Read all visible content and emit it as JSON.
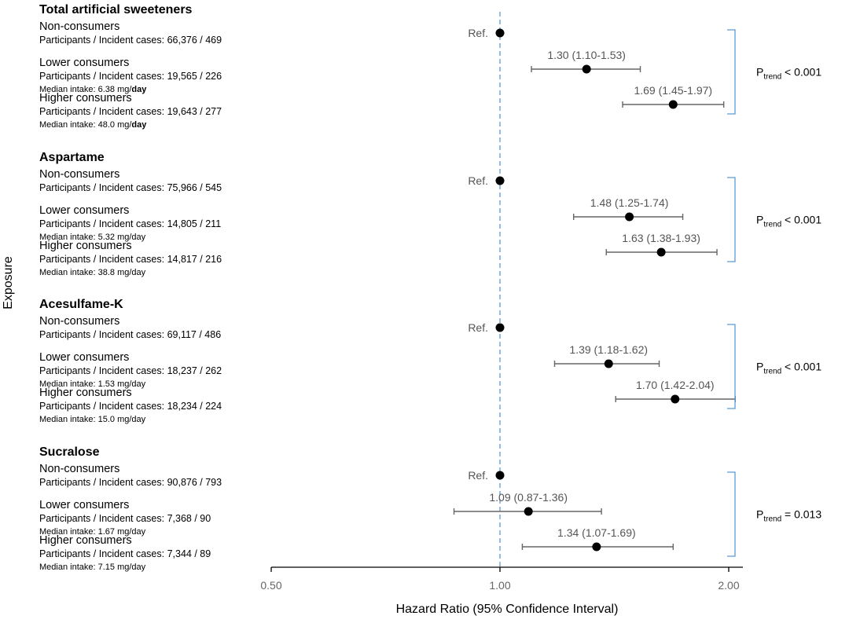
{
  "chart_data": {
    "type": "forest",
    "xlabel": "Hazard Ratio (95% Confidence Interval)",
    "ylabel": "Exposure",
    "x_scale": "log",
    "xlim": [
      0.5,
      2.1
    ],
    "reference_line": 1.0,
    "ticks": [
      {
        "value": 0.5,
        "label": "0.50"
      },
      {
        "value": 1.0,
        "label": "1.00"
      },
      {
        "value": 2.0,
        "label": "2.00"
      }
    ],
    "ref_text": "Ref.",
    "groups": [
      {
        "title": "Total artificial sweeteners",
        "p_trend": {
          "prefix": "P",
          "sub": "trend",
          "suffix": " < 0.001"
        },
        "rows": [
          {
            "label": "Non-consumers",
            "detail": "Participants / Incident cases: 66,376 / 469",
            "median_prefix": "",
            "median_bold": "",
            "ref": true,
            "hr": 1.0
          },
          {
            "label": "Lower consumers",
            "detail": "Participants / Incident cases: 19,565 / 226",
            "median_prefix": "Median intake: 6.38 mg/",
            "median_bold": "day",
            "ref": false,
            "hr": 1.3,
            "lo": 1.1,
            "hi": 1.53,
            "text": "1.30 (1.10-1.53)"
          },
          {
            "label": "Higher consumers",
            "detail": "Participants / Incident cases: 19,643 / 277",
            "median_prefix": "Median intake: 48.0 mg/",
            "median_bold": "day",
            "ref": false,
            "hr": 1.69,
            "lo": 1.45,
            "hi": 1.97,
            "text": "1.69 (1.45-1.97)"
          }
        ]
      },
      {
        "title": "Aspartame",
        "p_trend": {
          "prefix": "P",
          "sub": "trend",
          "suffix": " < 0.001"
        },
        "rows": [
          {
            "label": "Non-consumers",
            "detail": "Participants / Incident cases: 75,966 / 545",
            "median_prefix": "",
            "median_bold": "",
            "ref": true,
            "hr": 1.0
          },
          {
            "label": "Lower consumers",
            "detail": "Participants / Incident cases: 14,805 / 211",
            "median_prefix": "Median intake: 5.32 mg/day",
            "median_bold": "",
            "ref": false,
            "hr": 1.48,
            "lo": 1.25,
            "hi": 1.74,
            "text": "1.48 (1.25-1.74)"
          },
          {
            "label": "Higher consumers",
            "detail": "Participants / Incident cases: 14,817 / 216",
            "median_prefix": "Median intake: 38.8 mg/day",
            "median_bold": "",
            "ref": false,
            "hr": 1.63,
            "lo": 1.38,
            "hi": 1.93,
            "text": "1.63 (1.38-1.93)"
          }
        ]
      },
      {
        "title": "Acesulfame-K",
        "p_trend": {
          "prefix": "P",
          "sub": "trend",
          "suffix": " < 0.001"
        },
        "rows": [
          {
            "label": "Non-consumers",
            "detail": "Participants / Incident cases: 69,117 / 486",
            "median_prefix": "",
            "median_bold": "",
            "ref": true,
            "hr": 1.0
          },
          {
            "label": "Lower consumers",
            "detail": "Participants / Incident cases: 18,237 / 262",
            "median_prefix": "Median intake: 1.53 mg/day",
            "median_bold": "",
            "ref": false,
            "hr": 1.39,
            "lo": 1.18,
            "hi": 1.62,
            "text": "1.39 (1.18-1.62)"
          },
          {
            "label": "Higher consumers",
            "detail": "Participants / Incident cases: 18,234 / 224",
            "median_prefix": "Median intake: 15.0 mg/day",
            "median_bold": "",
            "ref": false,
            "hr": 1.7,
            "lo": 1.42,
            "hi": 2.04,
            "text": "1.70 (1.42-2.04)"
          }
        ]
      },
      {
        "title": "Sucralose",
        "p_trend": {
          "prefix": "P",
          "sub": "trend",
          "suffix": " = 0.013"
        },
        "rows": [
          {
            "label": "Non-consumers",
            "detail": "Participants / Incident cases: 90,876 / 793",
            "median_prefix": "",
            "median_bold": "",
            "ref": true,
            "hr": 1.0
          },
          {
            "label": "Lower consumers",
            "detail": "Participants / Incident cases: 7,368 / 90",
            "median_prefix": "Median intake: 1.67 mg/day",
            "median_bold": "",
            "ref": false,
            "hr": 1.09,
            "lo": 0.87,
            "hi": 1.36,
            "text": "1.09 (0.87-1.36)"
          },
          {
            "label": "Higher consumers",
            "detail": "Participants / Incident cases: 7,344 / 89",
            "median_prefix": "Median intake: 7.15 mg/day",
            "median_bold": "",
            "ref": false,
            "hr": 1.34,
            "lo": 1.07,
            "hi": 1.69,
            "text": "1.34 (1.07-1.69)"
          }
        ]
      }
    ]
  }
}
